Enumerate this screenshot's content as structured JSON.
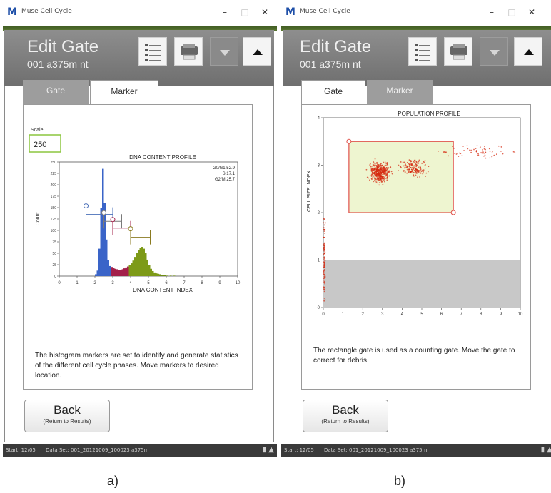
{
  "window_a": {
    "app_title": "Muse Cell Cycle",
    "header_title": "Edit Gate",
    "header_sub": "001 a375m nt",
    "tabs": [
      "Gate",
      "Marker"
    ],
    "active_tab": "Marker",
    "scale_label": "Scale",
    "scale_value": "250",
    "instructions": "The histogram markers are set to identify and generate statistics of the different cell cycle phases. Move markers to desired location.",
    "back_label": "Back",
    "back_sub": "(Return to Results)",
    "taskbar_left": "Start: 12/05",
    "taskbar_mid": "Data Set: 001_20121009_100023 a375m"
  },
  "window_b": {
    "app_title": "Muse Cell Cycle",
    "header_title": "Edit Gate",
    "header_sub": "001 a375m nt",
    "tabs": [
      "Gate",
      "Marker"
    ],
    "active_tab": "Gate",
    "instructions": "The rectangle gate is used as a counting gate. Move the gate to correct for debris.",
    "back_label": "Back",
    "back_sub": "(Return to Results)",
    "taskbar_left": "Start: 12/05",
    "taskbar_mid": "Data Set: 001_20121009_100023 a375m"
  },
  "window_controls": {
    "minimize": "–",
    "maximize": "□",
    "close": "✕"
  },
  "icons": [
    "list-icon",
    "printer-icon",
    "chevron-down-icon",
    "chevron-up-icon",
    "battery-icon",
    "network-icon"
  ],
  "captions": {
    "a": "a)",
    "b": "b)"
  },
  "colors": {
    "g0g1": "#3a64c8",
    "s_phase": "#a3204a",
    "g2m": "#7d9a18",
    "gate": "#e0504a",
    "gate_fill": "#eef5d0",
    "dots": "#d62a10"
  },
  "chart_data": [
    {
      "type": "histogram",
      "title": "DNA CONTENT PROFILE",
      "xlabel": "DNA CONTENT INDEX",
      "ylabel": "Count",
      "xlim": [
        0,
        10
      ],
      "ylim": [
        0,
        250
      ],
      "xticks": [
        "0",
        "1",
        "2",
        "3",
        "4",
        "5",
        "6",
        "7",
        "8",
        "9",
        "10"
      ],
      "yticks": [
        "0",
        "25",
        "50",
        "75",
        "100",
        "125",
        "150",
        "175",
        "200",
        "225",
        "250"
      ],
      "stats": [
        {
          "label": "G0/G1",
          "value": "52.9"
        },
        {
          "label": "S",
          "value": "17.1"
        },
        {
          "label": "G2/M",
          "value": "25.7"
        }
      ],
      "bins_x": [
        2.0,
        2.1,
        2.2,
        2.3,
        2.4,
        2.5,
        2.6,
        2.7,
        2.8,
        2.9,
        3.0,
        3.1,
        3.2,
        3.3,
        3.4,
        3.5,
        3.6,
        3.7,
        3.8,
        3.9,
        4.0,
        4.1,
        4.2,
        4.3,
        4.4,
        4.5,
        4.6,
        4.7,
        4.8,
        4.9,
        5.0,
        5.1,
        5.2,
        5.3,
        5.4,
        5.5,
        5.6,
        5.7,
        5.8,
        5.9,
        6.0,
        6.2,
        6.4,
        6.6
      ],
      "bins_y": [
        4,
        12,
        60,
        150,
        235,
        160,
        80,
        35,
        22,
        20,
        18,
        16,
        15,
        14,
        14,
        15,
        17,
        19,
        21,
        24,
        28,
        34,
        42,
        50,
        57,
        62,
        64,
        60,
        50,
        36,
        24,
        16,
        11,
        8,
        6,
        5,
        4,
        3,
        2,
        2,
        1,
        1,
        1,
        0
      ],
      "phase_ranges": [
        {
          "name": "G0/G1",
          "from": 2.0,
          "to": 2.9
        },
        {
          "name": "S",
          "from": 2.9,
          "to": 3.9
        },
        {
          "name": "G2/M",
          "from": 3.9,
          "to": 5.6
        }
      ],
      "markers": [
        {
          "x1": 1.5,
          "x2": 3.0,
          "y": 135
        },
        {
          "x1": 2.5,
          "x2": 3.5,
          "y": 120
        },
        {
          "x1": 3.0,
          "x2": 4.0,
          "y": 105
        },
        {
          "x1": 4.0,
          "x2": 5.1,
          "y": 85
        }
      ]
    },
    {
      "type": "scatter",
      "title": "POPULATION PROFILE",
      "xlabel": "DNA CONTENT INDEX",
      "ylabel": "CELL SIZE INDEX",
      "xlim": [
        0,
        10
      ],
      "ylim": [
        0,
        4
      ],
      "xticks": [
        "0",
        "1",
        "2",
        "3",
        "4",
        "5",
        "6",
        "7",
        "8",
        "9",
        "10"
      ],
      "yticks": [
        "0",
        "1",
        "2",
        "3",
        "4"
      ],
      "gate": {
        "x1": 1.3,
        "x2": 6.6,
        "y1": 2.0,
        "y2": 3.5
      },
      "shaded_region": {
        "y1": 0,
        "y2": 1.0
      },
      "clusters": [
        {
          "cx": 2.9,
          "cy": 2.85,
          "sx": 0.35,
          "sy": 0.13,
          "n": 420
        },
        {
          "cx": 4.6,
          "cy": 2.95,
          "sx": 0.45,
          "sy": 0.12,
          "n": 160
        },
        {
          "cx": 7.8,
          "cy": 3.3,
          "sx": 1.2,
          "sy": 0.1,
          "n": 60
        },
        {
          "cx": 0.05,
          "cy": 1.0,
          "sx": 0.03,
          "sy": 0.6,
          "n": 80
        }
      ]
    }
  ]
}
